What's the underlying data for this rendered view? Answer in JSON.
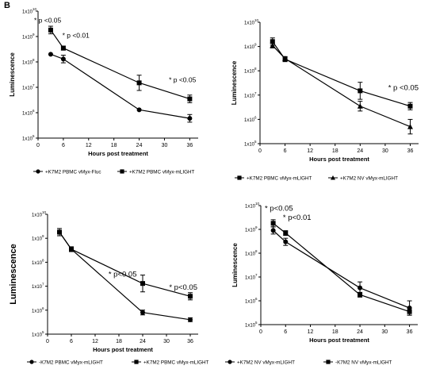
{
  "figure": {
    "panel_letter": "B"
  },
  "chart_data": [
    {
      "type": "line",
      "xlabel": "Hours post treatment",
      "ylabel": "Luminescence",
      "ylabel_size": "small",
      "x_ticks": [
        "0",
        "6",
        "12",
        "18",
        "24",
        "30",
        "36"
      ],
      "xlim": [
        0,
        38
      ],
      "y_scale": "log",
      "y_ticks": [
        {
          "exp": 5,
          "label": "1x10"
        },
        {
          "exp": 6,
          "label": "1x10"
        },
        {
          "exp": 7,
          "label": "1x10"
        },
        {
          "exp": 8,
          "label": "1x10"
        },
        {
          "exp": 9,
          "label": "1x10"
        },
        {
          "exp": 10,
          "label": "1x10"
        }
      ],
      "ylim_exp": [
        5,
        10
      ],
      "legend": "bottom",
      "series": [
        {
          "name": "+K7M2 PBMC vMyx-Fluc",
          "marker": "circle",
          "x": [
            3,
            6,
            24,
            36
          ],
          "y": [
            200000000.0,
            130000000.0,
            1300000.0,
            600000.0
          ],
          "err": [
            0,
            0.15,
            0,
            0.15
          ]
        },
        {
          "name": "+K7M2 PBMC vMyx-mLIGHT",
          "marker": "square",
          "x": [
            3,
            6,
            24,
            36
          ],
          "y": [
            1800000000.0,
            350000000.0,
            15000000.0,
            3500000.0
          ],
          "err": [
            0.15,
            0.08,
            0.3,
            0.15
          ]
        }
      ],
      "annotations": [
        {
          "text": "* p <0.05",
          "x": 5.5,
          "y_exp": 9.55
        },
        {
          "text": "* p <0.01",
          "x": 12.2,
          "y_exp": 8.95
        },
        {
          "text": "* p <0.05",
          "x": 37.5,
          "y_exp": 7.2
        }
      ]
    },
    {
      "type": "line",
      "xlabel": "Hours post treatment",
      "ylabel": "Luminescence",
      "ylabel_size": "small",
      "x_ticks": [
        "0",
        "6",
        "12",
        "18",
        "24",
        "30",
        "36"
      ],
      "xlim": [
        0,
        38
      ],
      "y_scale": "log",
      "y_ticks": [
        {
          "exp": 5,
          "label": "1x10"
        },
        {
          "exp": 6,
          "label": "1x10"
        },
        {
          "exp": 7,
          "label": "1x10"
        },
        {
          "exp": 8,
          "label": "1x10"
        },
        {
          "exp": 9,
          "label": "1x10"
        },
        {
          "exp": 10,
          "label": "1x10"
        }
      ],
      "ylim_exp": [
        5,
        10
      ],
      "legend": "bottom",
      "series": [
        {
          "name": "+K7M2 PBMC vMyx-mLIGHT",
          "marker": "square",
          "x": [
            3,
            6,
            24,
            36
          ],
          "y": [
            1600000000.0,
            300000000.0,
            15000000.0,
            3500000.0
          ],
          "err": [
            0.15,
            0.1,
            0.35,
            0.15
          ]
        },
        {
          "name": "+K7M2 NV vMyx-mLIGHT",
          "marker": "triangle",
          "x": [
            3,
            6,
            24,
            36
          ],
          "y": [
            1100000000.0,
            320000000.0,
            3500000.0,
            500000.0
          ],
          "err": [
            0.1,
            0.08,
            0.2,
            0.3
          ]
        }
      ],
      "annotations": [
        {
          "text": "* p <0.05",
          "x": 38,
          "y_exp": 7.2
        }
      ]
    },
    {
      "type": "line",
      "xlabel": "Hours post treatment",
      "ylabel": "Luminescence",
      "ylabel_size": "large",
      "x_ticks": [
        "0",
        "6",
        "12",
        "18",
        "24",
        "30",
        "36"
      ],
      "xlim": [
        0,
        38
      ],
      "y_scale": "log",
      "y_ticks": [
        {
          "exp": 5,
          "label": "1x10"
        },
        {
          "exp": 6,
          "label": "1x10"
        },
        {
          "exp": 7,
          "label": "1x10"
        },
        {
          "exp": 8,
          "label": "1x10"
        },
        {
          "exp": 9,
          "label": "1x10"
        },
        {
          "exp": 10,
          "label": "1x10"
        }
      ],
      "ylim_exp": [
        5,
        10
      ],
      "legend": "bottom",
      "series": [
        {
          "name": "-K7M2 PBMC vMyx-mLIGHT",
          "marker": "circle",
          "x": [
            3,
            6,
            24,
            36
          ],
          "y": [
            1800000000.0,
            350000000.0,
            800000.0,
            400000.0
          ],
          "err": [
            0.15,
            0.1,
            0.1,
            0.08
          ]
        },
        {
          "name": "+K7M2 PBMC vMyx-mLIGHT",
          "marker": "square",
          "x": [
            3,
            6,
            24,
            36
          ],
          "y": [
            1800000000.0,
            350000000.0,
            13000000.0,
            3800000.0
          ],
          "err": [
            0.15,
            0.1,
            0.35,
            0.15
          ]
        }
      ],
      "annotations": [
        {
          "text": "* p<0.05",
          "x": 22.5,
          "y_exp": 7.4
        },
        {
          "text": "* p<0.05",
          "x": 37.8,
          "y_exp": 6.85
        }
      ]
    },
    {
      "type": "line",
      "xlabel": "Hours post treatment",
      "ylabel": "Luminescence",
      "ylabel_size": "small",
      "x_ticks": [
        "0",
        "6",
        "12",
        "18",
        "24",
        "30",
        "36"
      ],
      "xlim": [
        0,
        38
      ],
      "y_scale": "log",
      "y_ticks": [
        {
          "exp": 5,
          "label": "1x10"
        },
        {
          "exp": 6,
          "label": "1x10"
        },
        {
          "exp": 7,
          "label": "1x10"
        },
        {
          "exp": 8,
          "label": "1x10"
        },
        {
          "exp": 9,
          "label": "1x10"
        },
        {
          "exp": 10,
          "label": "1x10"
        }
      ],
      "ylim_exp": [
        5,
        10
      ],
      "legend": "bottom",
      "series": [
        {
          "name": "+K7M2 NV vMyx-mLIGHT",
          "marker": "circle",
          "x": [
            3,
            6,
            24,
            36
          ],
          "y": [
            900000000.0,
            300000000.0,
            3500000.0,
            500000.0
          ],
          "err": [
            0.15,
            0.15,
            0.25,
            0.3
          ]
        },
        {
          "name": "-K7M2 NV vMyx-mLIGHT",
          "marker": "square",
          "x": [
            3,
            6,
            24,
            36
          ],
          "y": [
            1800000000.0,
            700000000.0,
            1800000.0,
            350000.0
          ],
          "err": [
            0.15,
            0.1,
            0.1,
            0.15
          ]
        }
      ],
      "annotations": [
        {
          "text": "* p<0.05",
          "x": 7.8,
          "y_exp": 9.78
        },
        {
          "text": "* p<0.01",
          "x": 12.2,
          "y_exp": 9.4
        }
      ]
    }
  ]
}
